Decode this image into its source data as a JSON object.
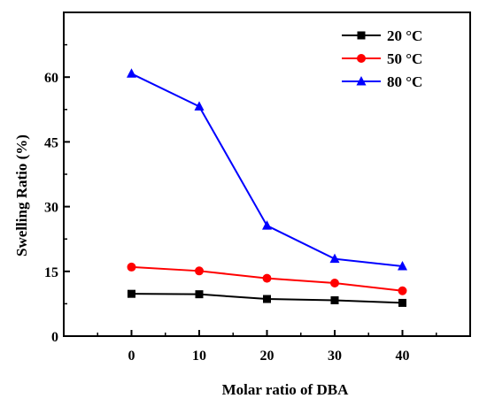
{
  "chart_data": {
    "type": "line",
    "xlabel": "Molar ratio of DBA",
    "ylabel": "Swelling Ratio (%)",
    "xlim": [
      -10,
      50
    ],
    "ylim": [
      0,
      75
    ],
    "x": [
      0,
      10,
      20,
      30,
      40
    ],
    "xticks": [
      "0",
      "10",
      "20",
      "30",
      "40"
    ],
    "yticks": [
      "0",
      "15",
      "30",
      "45",
      "60"
    ],
    "series": [
      {
        "name": "20 °C",
        "color": "#000000",
        "marker": "square",
        "values": [
          9.8,
          9.7,
          8.6,
          8.3,
          7.7
        ]
      },
      {
        "name": "50 °C",
        "color": "#ff0000",
        "marker": "circle",
        "values": [
          16.0,
          15.1,
          13.4,
          12.3,
          10.5
        ]
      },
      {
        "name": "80 °C",
        "color": "#0000ff",
        "marker": "triangle",
        "values": [
          60.8,
          53.2,
          25.6,
          17.9,
          16.2
        ]
      }
    ],
    "legend_position": "top-right",
    "grid": false
  }
}
